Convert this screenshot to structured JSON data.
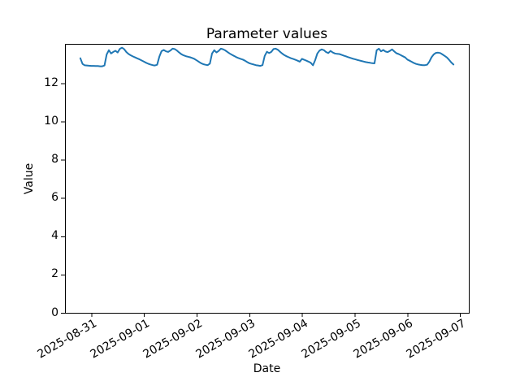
{
  "chart_data": {
    "type": "line",
    "title": "Parameter values",
    "xlabel": "Date",
    "ylabel": "Value",
    "grid": false,
    "legend": null,
    "line_color": "#1f77b4",
    "axis_color": "#000000",
    "background_color": "#ffffff",
    "x_start": "2025-08-30 19:00",
    "x_end": "2025-09-06 21:00",
    "x_step_hours": 1,
    "x_tick_labels": [
      "2025-08-31",
      "2025-09-01",
      "2025-09-02",
      "2025-09-03",
      "2025-09-04",
      "2025-09-05",
      "2025-09-06",
      "2025-09-07"
    ],
    "x_tick_t_hours": [
      5,
      29,
      53,
      77,
      101,
      125,
      149,
      173
    ],
    "y_ticks": [
      0,
      2,
      4,
      6,
      8,
      10,
      12
    ],
    "xlim_hours_from_start": [
      -7,
      177
    ],
    "ylim": [
      0,
      14.05
    ],
    "values": [
      13.3,
      13.0,
      12.93,
      12.92,
      12.91,
      12.9,
      12.9,
      12.89,
      12.89,
      12.88,
      12.88,
      12.92,
      13.5,
      13.72,
      13.55,
      13.63,
      13.69,
      13.6,
      13.79,
      13.85,
      13.77,
      13.62,
      13.52,
      13.45,
      13.39,
      13.34,
      13.29,
      13.24,
      13.18,
      13.12,
      13.06,
      13.01,
      12.97,
      12.94,
      12.92,
      12.96,
      13.38,
      13.67,
      13.73,
      13.66,
      13.63,
      13.7,
      13.8,
      13.78,
      13.7,
      13.6,
      13.51,
      13.45,
      13.41,
      13.38,
      13.35,
      13.31,
      13.26,
      13.19,
      13.11,
      13.04,
      12.99,
      12.96,
      12.94,
      13.02,
      13.55,
      13.72,
      13.6,
      13.68,
      13.8,
      13.77,
      13.71,
      13.63,
      13.55,
      13.48,
      13.42,
      13.36,
      13.31,
      13.27,
      13.23,
      13.17,
      13.1,
      13.04,
      13.0,
      12.97,
      12.94,
      12.92,
      12.9,
      12.94,
      13.42,
      13.64,
      13.57,
      13.63,
      13.78,
      13.8,
      13.74,
      13.64,
      13.54,
      13.46,
      13.4,
      13.35,
      13.3,
      13.26,
      13.22,
      13.17,
      13.12,
      13.27,
      13.22,
      13.17,
      13.12,
      13.06,
      12.93,
      13.2,
      13.55,
      13.7,
      13.76,
      13.72,
      13.62,
      13.57,
      13.68,
      13.6,
      13.55,
      13.53,
      13.52,
      13.48,
      13.44,
      13.4,
      13.36,
      13.32,
      13.28,
      13.25,
      13.22,
      13.19,
      13.16,
      13.13,
      13.1,
      13.08,
      13.06,
      13.04,
      13.03,
      13.72,
      13.8,
      13.66,
      13.73,
      13.65,
      13.62,
      13.68,
      13.76,
      13.66,
      13.56,
      13.52,
      13.46,
      13.4,
      13.34,
      13.23,
      13.17,
      13.11,
      13.05,
      13.0,
      12.97,
      12.95,
      12.94,
      12.94,
      12.96,
      13.12,
      13.35,
      13.5,
      13.58,
      13.59,
      13.57,
      13.5,
      13.42,
      13.34,
      13.22,
      13.08,
      12.97
    ]
  }
}
